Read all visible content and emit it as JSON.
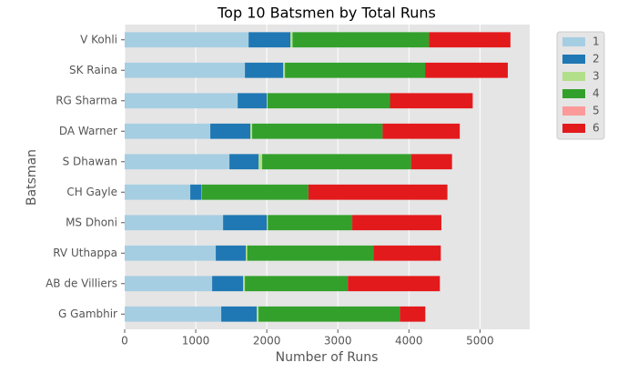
{
  "chart_data": {
    "type": "stacked-barh",
    "title": "Top 10 Batsmen by Total Runs",
    "x_label": "Number of Runs",
    "y_label": "Batsman",
    "categories": [
      "V Kohli",
      "SK Raina",
      "RG Sharma",
      "DA Warner",
      "S Dhawan",
      "CH Gayle",
      "MS Dhoni",
      "RV Uthappa",
      "AB de Villiers",
      "G Gambhir"
    ],
    "series": [
      {
        "name": "1",
        "color": "#a6cee3",
        "values": [
          1744,
          1692,
          1590,
          1205,
          1474,
          923,
          1385,
          1282,
          1231,
          1359
        ]
      },
      {
        "name": "2",
        "color": "#1f78b4",
        "values": [
          589,
          539,
          410,
          564,
          411,
          154,
          615,
          423,
          436,
          500
        ]
      },
      {
        "name": "3",
        "color": "#b2df8a",
        "values": [
          30,
          25,
          10,
          25,
          50,
          5,
          15,
          20,
          25,
          25
        ]
      },
      {
        "name": "4",
        "color": "#33a02c",
        "values": [
          1920,
          1972,
          1724,
          1836,
          2096,
          1504,
          1188,
          1775,
          1449,
          1988
        ]
      },
      {
        "name": "5",
        "color": "#fb9a99",
        "values": [
          0,
          0,
          0,
          0,
          0,
          0,
          0,
          0,
          0,
          0
        ]
      },
      {
        "name": "6",
        "color": "#e31a1c",
        "values": [
          1146,
          1164,
          1164,
          1086,
          576,
          1956,
          1254,
          949,
          1295,
          359
        ]
      }
    ],
    "xlim": [
      0,
      5700
    ],
    "xticks": [
      0,
      1000,
      2000,
      3000,
      4000,
      5000
    ],
    "grid": true,
    "legend": "outside-right"
  }
}
